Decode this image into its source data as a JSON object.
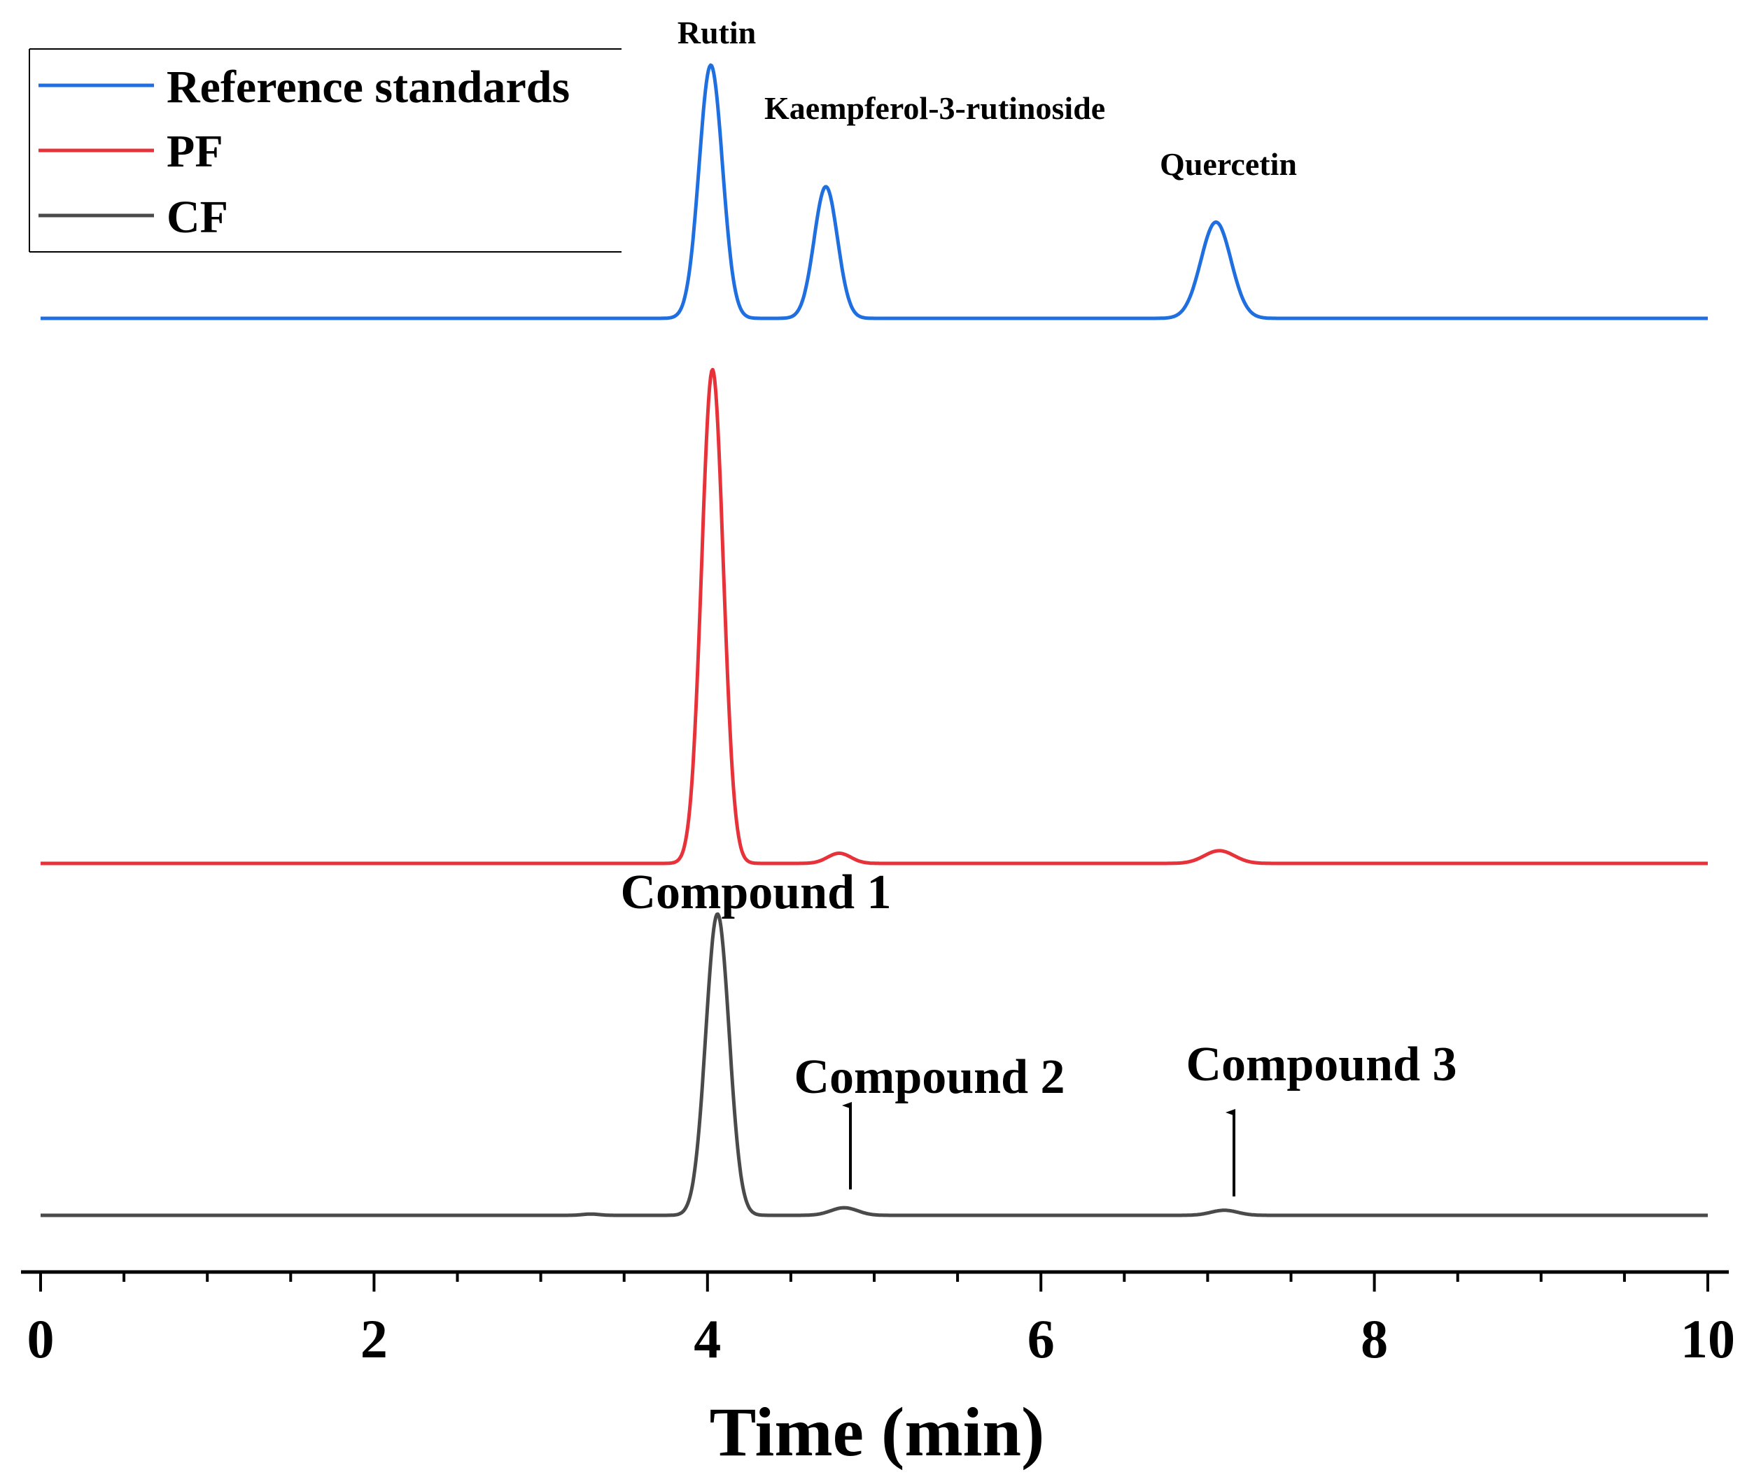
{
  "chart_data": {
    "type": "line",
    "title": "",
    "xlabel": "Time (min)",
    "ylabel": "",
    "xlim": [
      0,
      10
    ],
    "x_ticks": [
      "0",
      "2",
      "4",
      "6",
      "8",
      "10"
    ],
    "legend": {
      "placement": "top-left",
      "entries": [
        {
          "label": "Reference standards",
          "color": "#1f6fe0"
        },
        {
          "label": "PF",
          "color": "#e8323a"
        },
        {
          "label": "CF",
          "color": "#4a4a4a"
        }
      ]
    },
    "series": [
      {
        "name": "Reference standards",
        "color": "#1f6fe0",
        "baseline": 0.0,
        "peaks": [
          {
            "t": 4.02,
            "height": 1.0,
            "width": 0.07
          },
          {
            "t": 4.71,
            "height": 0.52,
            "width": 0.07
          },
          {
            "t": 7.05,
            "height": 0.38,
            "width": 0.09
          }
        ]
      },
      {
        "name": "PF",
        "color": "#e8323a",
        "baseline": 0.0,
        "peaks": [
          {
            "t": 4.03,
            "height": 1.95,
            "width": 0.065
          },
          {
            "t": 4.79,
            "height": 0.04,
            "width": 0.07
          },
          {
            "t": 7.07,
            "height": 0.05,
            "width": 0.09
          }
        ]
      },
      {
        "name": "CF",
        "color": "#4a4a4a",
        "baseline": 0.0,
        "peaks": [
          {
            "t": 4.06,
            "height": 1.19,
            "width": 0.07
          },
          {
            "t": 4.82,
            "height": 0.03,
            "width": 0.08
          },
          {
            "t": 7.1,
            "height": 0.02,
            "width": 0.08
          },
          {
            "t": 3.3,
            "height": 0.005,
            "width": 0.05
          }
        ]
      }
    ],
    "annotations": {
      "reference_peaks": [
        {
          "text": "Rutin",
          "t": 4.02
        },
        {
          "text": "Kaempferol-3-rutinoside",
          "t": 4.71
        },
        {
          "text": "Quercetin",
          "t": 7.05
        }
      ],
      "cf_compounds": [
        {
          "text": "Compound 1",
          "t": 4.06,
          "arrow": false
        },
        {
          "text": "Compound 2",
          "t": 4.82,
          "arrow": true
        },
        {
          "text": "Compound 3",
          "t": 7.1,
          "arrow": true
        }
      ]
    }
  }
}
